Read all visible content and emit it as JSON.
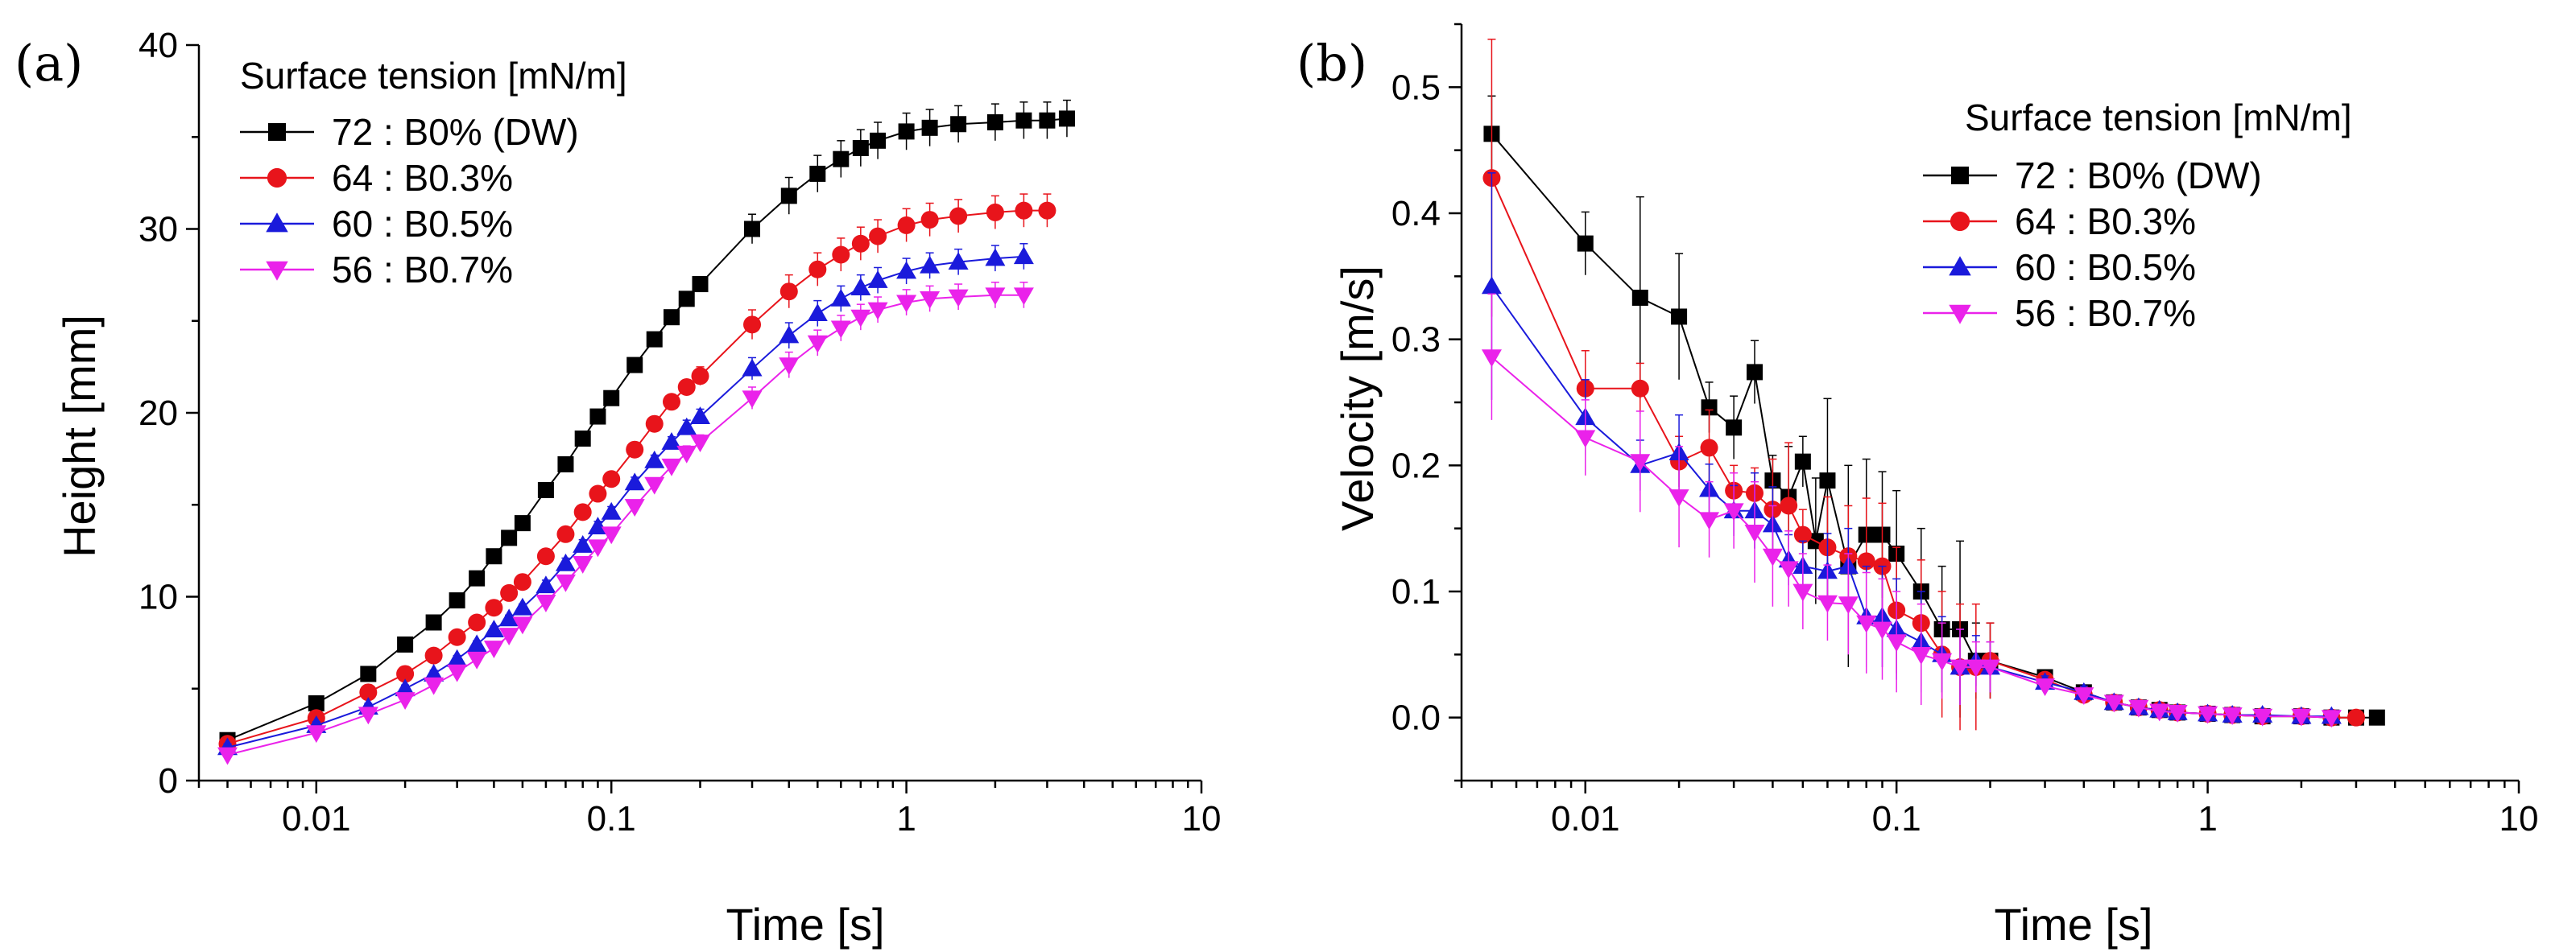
{
  "figure": {
    "panels": [
      {
        "id": "a",
        "label": "(a)"
      },
      {
        "id": "b",
        "label": "(b)"
      }
    ]
  },
  "chart_data": [
    {
      "type": "line",
      "panel": "(a)",
      "xlabel": "Time [s]",
      "ylabel": "Height [mm]",
      "xscale": "log",
      "xlim": [
        0.004,
        10
      ],
      "ylim": [
        0,
        40
      ],
      "xticks": [
        {
          "v": 0.01,
          "label": "0.01"
        },
        {
          "v": 0.1,
          "label": "0.1"
        },
        {
          "v": 1,
          "label": "1"
        },
        {
          "v": 10,
          "label": "10"
        }
      ],
      "yticks": [
        {
          "v": 0,
          "label": "0"
        },
        {
          "v": 10,
          "label": "10"
        },
        {
          "v": 20,
          "label": "20"
        },
        {
          "v": 30,
          "label": "30"
        },
        {
          "v": 40,
          "label": "40"
        }
      ],
      "legend_title": "Surface tension [mN/m]",
      "legend_position": "top-left",
      "series": [
        {
          "name": "72 : B0% (DW)",
          "color": "#000000",
          "marker": "square",
          "x": [
            0.005,
            0.01,
            0.015,
            0.02,
            0.025,
            0.03,
            0.035,
            0.04,
            0.045,
            0.05,
            0.06,
            0.07,
            0.08,
            0.09,
            0.1,
            0.12,
            0.14,
            0.16,
            0.18,
            0.2,
            0.3,
            0.4,
            0.5,
            0.6,
            0.7,
            0.8,
            1.0,
            1.2,
            1.5,
            2.0,
            2.5,
            3.0,
            3.5
          ],
          "y": [
            2.2,
            4.2,
            5.8,
            7.4,
            8.6,
            9.8,
            11.0,
            12.2,
            13.2,
            14.0,
            15.8,
            17.2,
            18.6,
            19.8,
            20.8,
            22.6,
            24.0,
            25.2,
            26.2,
            27.0,
            30.0,
            31.8,
            33.0,
            33.8,
            34.4,
            34.8,
            35.3,
            35.5,
            35.7,
            35.8,
            35.9,
            35.9,
            36.0
          ],
          "err": [
            0.2,
            0.2,
            0.2,
            0.2,
            0.2,
            0.2,
            0.2,
            0.2,
            0.2,
            0.2,
            0.3,
            0.3,
            0.3,
            0.3,
            0.3,
            0.3,
            0.3,
            0.3,
            0.3,
            0.4,
            0.8,
            1.0,
            1.0,
            1.0,
            1.0,
            1.0,
            1.0,
            1.0,
            1.0,
            1.0,
            1.0,
            1.0,
            1.0
          ]
        },
        {
          "name": "64 : B0.3%",
          "color": "#e8141b",
          "marker": "circle",
          "x": [
            0.005,
            0.01,
            0.015,
            0.02,
            0.025,
            0.03,
            0.035,
            0.04,
            0.045,
            0.05,
            0.06,
            0.07,
            0.08,
            0.09,
            0.1,
            0.12,
            0.14,
            0.16,
            0.18,
            0.2,
            0.3,
            0.4,
            0.5,
            0.6,
            0.7,
            0.8,
            1.0,
            1.2,
            1.5,
            2.0,
            2.5,
            3.0
          ],
          "y": [
            2.0,
            3.4,
            4.8,
            5.8,
            6.8,
            7.8,
            8.6,
            9.4,
            10.2,
            10.8,
            12.2,
            13.4,
            14.6,
            15.6,
            16.4,
            18.0,
            19.4,
            20.6,
            21.4,
            22.0,
            24.8,
            26.6,
            27.8,
            28.6,
            29.2,
            29.6,
            30.2,
            30.5,
            30.7,
            30.9,
            31.0,
            31.0
          ],
          "err": [
            0.2,
            0.2,
            0.2,
            0.2,
            0.2,
            0.2,
            0.2,
            0.2,
            0.2,
            0.2,
            0.3,
            0.3,
            0.3,
            0.3,
            0.3,
            0.3,
            0.3,
            0.4,
            0.4,
            0.5,
            0.8,
            0.9,
            0.9,
            0.9,
            0.9,
            0.9,
            0.9,
            0.9,
            0.9,
            0.9,
            0.9,
            0.9
          ]
        },
        {
          "name": "60 : B0.5%",
          "color": "#1a1adb",
          "marker": "triangle-up",
          "x": [
            0.005,
            0.01,
            0.015,
            0.02,
            0.025,
            0.03,
            0.035,
            0.04,
            0.045,
            0.05,
            0.06,
            0.07,
            0.08,
            0.09,
            0.1,
            0.12,
            0.14,
            0.16,
            0.18,
            0.2,
            0.3,
            0.4,
            0.5,
            0.6,
            0.7,
            0.8,
            1.0,
            1.2,
            1.5,
            2.0,
            2.5
          ],
          "y": [
            1.8,
            3.0,
            4.0,
            5.0,
            5.8,
            6.6,
            7.4,
            8.2,
            8.8,
            9.4,
            10.6,
            11.8,
            12.8,
            13.8,
            14.6,
            16.2,
            17.4,
            18.4,
            19.2,
            19.8,
            22.4,
            24.2,
            25.4,
            26.2,
            26.8,
            27.2,
            27.7,
            28.0,
            28.2,
            28.4,
            28.5
          ],
          "err": [
            0.2,
            0.2,
            0.2,
            0.2,
            0.2,
            0.2,
            0.2,
            0.2,
            0.2,
            0.2,
            0.3,
            0.3,
            0.3,
            0.3,
            0.3,
            0.3,
            0.3,
            0.3,
            0.4,
            0.4,
            0.6,
            0.7,
            0.7,
            0.7,
            0.7,
            0.7,
            0.7,
            0.7,
            0.7,
            0.7,
            0.7
          ]
        },
        {
          "name": "56 : B0.7%",
          "color": "#ea22ea",
          "marker": "triangle-down",
          "x": [
            0.005,
            0.01,
            0.015,
            0.02,
            0.025,
            0.03,
            0.035,
            0.04,
            0.045,
            0.05,
            0.06,
            0.07,
            0.08,
            0.09,
            0.1,
            0.12,
            0.14,
            0.16,
            0.18,
            0.2,
            0.3,
            0.4,
            0.5,
            0.6,
            0.7,
            0.8,
            1.0,
            1.2,
            1.5,
            2.0,
            2.5
          ],
          "y": [
            1.4,
            2.6,
            3.6,
            4.4,
            5.2,
            5.9,
            6.6,
            7.2,
            7.9,
            8.5,
            9.7,
            10.8,
            11.8,
            12.7,
            13.4,
            14.9,
            16.1,
            17.1,
            17.8,
            18.4,
            20.8,
            22.6,
            23.8,
            24.6,
            25.2,
            25.6,
            26.0,
            26.2,
            26.3,
            26.4,
            26.4
          ],
          "err": [
            0.2,
            0.2,
            0.2,
            0.2,
            0.2,
            0.2,
            0.2,
            0.2,
            0.2,
            0.2,
            0.3,
            0.3,
            0.3,
            0.3,
            0.3,
            0.3,
            0.3,
            0.3,
            0.4,
            0.4,
            0.6,
            0.7,
            0.7,
            0.7,
            0.7,
            0.7,
            0.7,
            0.7,
            0.7,
            0.7,
            0.7
          ]
        }
      ]
    },
    {
      "type": "line",
      "panel": "(b)",
      "xlabel": "Time [s]",
      "ylabel": "Velocity [m/s]",
      "xscale": "log",
      "xlim": [
        0.004,
        10
      ],
      "ylim": [
        -0.05,
        0.55
      ],
      "xticks": [
        {
          "v": 0.01,
          "label": "0.01"
        },
        {
          "v": 0.1,
          "label": "0.1"
        },
        {
          "v": 1,
          "label": "1"
        },
        {
          "v": 10,
          "label": "10"
        }
      ],
      "yticks": [
        {
          "v": 0,
          "label": "0.0"
        },
        {
          "v": 0.1,
          "label": "0.1"
        },
        {
          "v": 0.2,
          "label": "0.2"
        },
        {
          "v": 0.3,
          "label": "0.3"
        },
        {
          "v": 0.4,
          "label": "0.4"
        },
        {
          "v": 0.5,
          "label": "0.5"
        }
      ],
      "legend_title": "Surface tension [mN/m]",
      "legend_position": "top-right",
      "series": [
        {
          "name": "72 : B0% (DW)",
          "color": "#000000",
          "marker": "square",
          "x": [
            0.005,
            0.01,
            0.015,
            0.02,
            0.025,
            0.03,
            0.035,
            0.04,
            0.045,
            0.05,
            0.055,
            0.06,
            0.07,
            0.08,
            0.09,
            0.1,
            0.12,
            0.14,
            0.16,
            0.18,
            0.2,
            0.3,
            0.4,
            0.5,
            0.6,
            0.7,
            0.8,
            1.0,
            1.2,
            1.5,
            2.0,
            2.5,
            3.0,
            3.5
          ],
          "y": [
            0.463,
            0.376,
            0.333,
            0.318,
            0.246,
            0.23,
            0.274,
            0.188,
            0.175,
            0.203,
            0.14,
            0.188,
            0.12,
            0.145,
            0.145,
            0.13,
            0.1,
            0.07,
            0.07,
            0.045,
            0.045,
            0.032,
            0.02,
            0.012,
            0.008,
            0.006,
            0.004,
            0.003,
            0.002,
            0.001,
            0.001,
            0.0,
            0.0,
            0.0
          ],
          "err": [
            0.03,
            0.025,
            0.08,
            0.05,
            0.02,
            0.025,
            0.025,
            0.02,
            0.04,
            0.02,
            0.05,
            0.065,
            0.08,
            0.06,
            0.05,
            0.05,
            0.05,
            0.05,
            0.07,
            0.03,
            0.03,
            0.005,
            0.005,
            0.005,
            0.005,
            0.004,
            0.003,
            0.002,
            0.002,
            0.001,
            0.001,
            0.001,
            0.001,
            0.001
          ]
        },
        {
          "name": "64 : B0.3%",
          "color": "#e8141b",
          "marker": "circle",
          "x": [
            0.005,
            0.01,
            0.015,
            0.02,
            0.025,
            0.03,
            0.035,
            0.04,
            0.045,
            0.05,
            0.06,
            0.07,
            0.08,
            0.09,
            0.1,
            0.12,
            0.14,
            0.16,
            0.18,
            0.2,
            0.3,
            0.4,
            0.5,
            0.6,
            0.7,
            0.8,
            1.0,
            1.2,
            1.5,
            2.0,
            2.5,
            3.0
          ],
          "y": [
            0.428,
            0.261,
            0.261,
            0.203,
            0.214,
            0.18,
            0.178,
            0.165,
            0.168,
            0.145,
            0.135,
            0.128,
            0.124,
            0.12,
            0.085,
            0.075,
            0.05,
            0.04,
            0.04,
            0.045,
            0.03,
            0.018,
            0.012,
            0.008,
            0.006,
            0.004,
            0.003,
            0.002,
            0.001,
            0.001,
            0.0,
            0.0
          ],
          "err": [
            0.11,
            0.03,
            0.02,
            0.02,
            0.03,
            0.02,
            0.02,
            0.04,
            0.05,
            0.02,
            0.04,
            0.04,
            0.05,
            0.05,
            0.05,
            0.05,
            0.05,
            0.05,
            0.05,
            0.03,
            0.005,
            0.005,
            0.005,
            0.004,
            0.003,
            0.003,
            0.002,
            0.002,
            0.001,
            0.001,
            0.001,
            0.001
          ]
        },
        {
          "name": "60 : B0.5%",
          "color": "#1a1adb",
          "marker": "triangle-up",
          "x": [
            0.005,
            0.01,
            0.015,
            0.02,
            0.025,
            0.03,
            0.035,
            0.04,
            0.045,
            0.05,
            0.06,
            0.07,
            0.08,
            0.09,
            0.1,
            0.12,
            0.14,
            0.16,
            0.18,
            0.2,
            0.3,
            0.4,
            0.5,
            0.6,
            0.7,
            0.8,
            1.0,
            1.2,
            1.5,
            2.0,
            2.5
          ],
          "y": [
            0.342,
            0.238,
            0.2,
            0.21,
            0.181,
            0.164,
            0.164,
            0.153,
            0.125,
            0.12,
            0.116,
            0.12,
            0.08,
            0.08,
            0.07,
            0.06,
            0.05,
            0.04,
            0.045,
            0.04,
            0.028,
            0.02,
            0.012,
            0.008,
            0.006,
            0.004,
            0.003,
            0.002,
            0.002,
            0.001,
            0.001
          ],
          "err": [
            0.09,
            0.03,
            0.02,
            0.03,
            0.02,
            0.02,
            0.03,
            0.03,
            0.02,
            0.02,
            0.03,
            0.03,
            0.04,
            0.04,
            0.04,
            0.04,
            0.03,
            0.03,
            0.02,
            0.02,
            0.005,
            0.005,
            0.004,
            0.004,
            0.003,
            0.003,
            0.002,
            0.002,
            0.001,
            0.001,
            0.001
          ]
        },
        {
          "name": "56 : B0.7%",
          "color": "#ea22ea",
          "marker": "triangle-down",
          "x": [
            0.005,
            0.01,
            0.015,
            0.02,
            0.025,
            0.03,
            0.035,
            0.04,
            0.045,
            0.05,
            0.06,
            0.07,
            0.08,
            0.09,
            0.1,
            0.12,
            0.14,
            0.16,
            0.18,
            0.2,
            0.3,
            0.4,
            0.5,
            0.6,
            0.7,
            0.8,
            1.0,
            1.2,
            1.5,
            2.0,
            2.5
          ],
          "y": [
            0.286,
            0.222,
            0.203,
            0.175,
            0.157,
            0.164,
            0.147,
            0.128,
            0.118,
            0.1,
            0.091,
            0.09,
            0.075,
            0.07,
            0.06,
            0.05,
            0.045,
            0.04,
            0.04,
            0.04,
            0.025,
            0.018,
            0.012,
            0.008,
            0.005,
            0.004,
            0.003,
            0.002,
            0.001,
            0.001,
            0.0
          ],
          "err": [
            0.05,
            0.03,
            0.04,
            0.04,
            0.03,
            0.03,
            0.04,
            0.04,
            0.03,
            0.03,
            0.03,
            0.04,
            0.04,
            0.04,
            0.04,
            0.04,
            0.03,
            0.03,
            0.02,
            0.02,
            0.005,
            0.004,
            0.004,
            0.003,
            0.003,
            0.002,
            0.002,
            0.001,
            0.001,
            0.001,
            0.001
          ]
        }
      ]
    }
  ]
}
